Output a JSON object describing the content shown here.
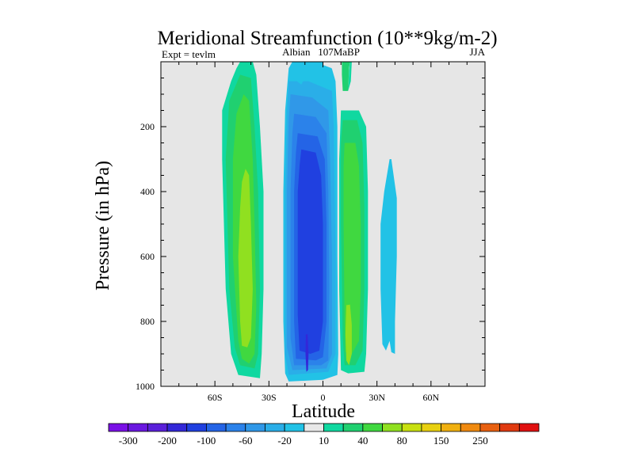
{
  "chart_data": {
    "type": "heatmap",
    "title": "Meridional Streamfunction (10**9kg/m-2)",
    "subtitle_left": "Expt = tevlm",
    "subtitle_center": "Albian   107MaBP",
    "subtitle_right": "JJA",
    "xlabel": "Latitude",
    "ylabel": "Pressure (in hPa)",
    "xlim": [
      -90,
      90
    ],
    "ylim": [
      1000,
      0
    ],
    "x_ticks": [
      {
        "value": -60,
        "label": "60S"
      },
      {
        "value": -30,
        "label": "30S"
      },
      {
        "value": 0,
        "label": "0"
      },
      {
        "value": 30,
        "label": "30N"
      },
      {
        "value": 60,
        "label": "60N"
      }
    ],
    "y_ticks": [
      {
        "value": 200,
        "label": "200"
      },
      {
        "value": 400,
        "label": "400"
      },
      {
        "value": 600,
        "label": "600"
      },
      {
        "value": 800,
        "label": "800"
      },
      {
        "value": 1000,
        "label": "1000"
      }
    ],
    "background_color": "#e6e6e6",
    "colorbar": {
      "colors": [
        "#7a10e6",
        "#6a18e0",
        "#5a20da",
        "#3328d8",
        "#2040e0",
        "#2464e6",
        "#2b82ea",
        "#3098e8",
        "#2aaee8",
        "#22c2e6",
        "#e8e8e8",
        "#10d8a0",
        "#20d070",
        "#40d840",
        "#90e020",
        "#c8e010",
        "#e8d010",
        "#f0b010",
        "#f08a10",
        "#e86010",
        "#e03a10",
        "#e01010"
      ],
      "labels": [
        {
          "index": 1,
          "text": "-300"
        },
        {
          "index": 3,
          "text": "-200"
        },
        {
          "index": 5,
          "text": "-100"
        },
        {
          "index": 7,
          "text": "-60"
        },
        {
          "index": 9,
          "text": "-20"
        },
        {
          "index": 11,
          "text": "10"
        },
        {
          "index": 13,
          "text": "40"
        },
        {
          "index": 15,
          "text": "80"
        },
        {
          "index": 17,
          "text": "150"
        },
        {
          "index": 19,
          "text": "250"
        }
      ]
    },
    "regions": [
      {
        "name": "nh-outer-cyan",
        "color": "#22c2e6",
        "points": [
          [
            -17,
            0
          ],
          [
            0,
            0
          ],
          [
            0,
            10
          ],
          [
            5,
            22
          ],
          [
            7,
            60
          ],
          [
            8,
            200
          ],
          [
            8,
            600
          ],
          [
            8.5,
            900
          ],
          [
            8,
            965
          ],
          [
            0,
            980
          ],
          [
            -19,
            985
          ],
          [
            -21,
            960
          ],
          [
            -22,
            800
          ],
          [
            -22,
            400
          ],
          [
            -21,
            150
          ],
          [
            -19,
            20
          ]
        ]
      },
      {
        "name": "nh-teal",
        "color": "#2aaee8",
        "points": [
          [
            -19,
            60
          ],
          [
            -8,
            60
          ],
          [
            5,
            90
          ],
          [
            6,
            200
          ],
          [
            7,
            600
          ],
          [
            7,
            900
          ],
          [
            3,
            955
          ],
          [
            -19,
            965
          ],
          [
            -21,
            900
          ],
          [
            -21,
            400
          ],
          [
            -20,
            150
          ]
        ]
      },
      {
        "name": "nh-mid-blue",
        "color": "#3098e8",
        "points": [
          [
            -18,
            100
          ],
          [
            -6,
            110
          ],
          [
            3,
            150
          ],
          [
            4,
            300
          ],
          [
            5,
            600
          ],
          [
            5,
            900
          ],
          [
            2,
            945
          ],
          [
            -17,
            950
          ],
          [
            -20,
            880
          ],
          [
            -20,
            400
          ],
          [
            -19,
            180
          ]
        ]
      },
      {
        "name": "nh-blue-2",
        "color": "#2b82ea",
        "points": [
          [
            -16,
            160
          ],
          [
            -4,
            170
          ],
          [
            2,
            220
          ],
          [
            3,
            400
          ],
          [
            3.5,
            700
          ],
          [
            3,
            920
          ],
          [
            -1,
            935
          ],
          [
            -16,
            935
          ],
          [
            -18,
            850
          ],
          [
            -18,
            400
          ],
          [
            -17,
            220
          ]
        ]
      },
      {
        "name": "nh-blue-3",
        "color": "#2464e6",
        "points": [
          [
            -14,
            220
          ],
          [
            -3,
            230
          ],
          [
            1,
            300
          ],
          [
            2,
            500
          ],
          [
            2,
            800
          ],
          [
            0,
            910
          ],
          [
            -4,
            920
          ],
          [
            -15,
            915
          ],
          [
            -16,
            800
          ],
          [
            -16,
            400
          ],
          [
            -15,
            280
          ]
        ]
      },
      {
        "name": "nh-blue-core",
        "color": "#2040e0",
        "points": [
          [
            -12,
            270
          ],
          [
            -4,
            280
          ],
          [
            -1,
            350
          ],
          [
            0,
            500
          ],
          [
            0,
            800
          ],
          [
            -2,
            890
          ],
          [
            -7,
            900
          ],
          [
            -13,
            890
          ],
          [
            -14,
            780
          ],
          [
            -14,
            400
          ],
          [
            -13,
            320
          ]
        ]
      },
      {
        "name": "nh-violet-core",
        "color": "#3328d8",
        "points": [
          [
            -9.5,
            840
          ],
          [
            -8.5,
            840
          ],
          [
            -8,
            900
          ],
          [
            -8.3,
            950
          ],
          [
            -9.2,
            955
          ],
          [
            -9.7,
            900
          ]
        ]
      },
      {
        "name": "sh-outer-green",
        "color": "#10d8a0",
        "points": [
          [
            -46,
            0
          ],
          [
            -39,
            0
          ],
          [
            -37,
            40
          ],
          [
            -35,
            200
          ],
          [
            -33,
            400
          ],
          [
            -33,
            700
          ],
          [
            -34,
            900
          ],
          [
            -35,
            975
          ],
          [
            -47,
            965
          ],
          [
            -51,
            900
          ],
          [
            -54,
            700
          ],
          [
            -56,
            300
          ],
          [
            -56,
            150
          ],
          [
            -51,
            60
          ],
          [
            -48,
            20
          ]
        ]
      },
      {
        "name": "sh-green-1",
        "color": "#20d070",
        "points": [
          [
            -46,
            40
          ],
          [
            -40,
            50
          ],
          [
            -38,
            200
          ],
          [
            -36,
            400
          ],
          [
            -35,
            700
          ],
          [
            -36,
            900
          ],
          [
            -38,
            945
          ],
          [
            -46,
            935
          ],
          [
            -49,
            880
          ],
          [
            -52,
            700
          ],
          [
            -54,
            300
          ],
          [
            -52,
            120
          ]
        ]
      },
      {
        "name": "sh-green-2",
        "color": "#40d840",
        "points": [
          [
            -44,
            100
          ],
          [
            -41,
            120
          ],
          [
            -39,
            300
          ],
          [
            -38,
            500
          ],
          [
            -37,
            750
          ],
          [
            -38,
            900
          ],
          [
            -41,
            930
          ],
          [
            -45,
            915
          ],
          [
            -47,
            860
          ],
          [
            -50,
            600
          ],
          [
            -50,
            300
          ],
          [
            -48,
            160
          ]
        ]
      },
      {
        "name": "sh-lime-core",
        "color": "#90e020",
        "points": [
          [
            -43,
            330
          ],
          [
            -41,
            350
          ],
          [
            -40,
            500
          ],
          [
            -39,
            700
          ],
          [
            -40,
            850
          ],
          [
            -42,
            880
          ],
          [
            -45,
            875
          ],
          [
            -46,
            800
          ],
          [
            -47,
            600
          ],
          [
            -46,
            450
          ],
          [
            -45,
            370
          ]
        ]
      },
      {
        "name": "eq-outer-green",
        "color": "#10d8a0",
        "points": [
          [
            10,
            150
          ],
          [
            20,
            150
          ],
          [
            24,
            200
          ],
          [
            25,
            400
          ],
          [
            25,
            700
          ],
          [
            24,
            900
          ],
          [
            23,
            955
          ],
          [
            14,
            960
          ],
          [
            10,
            950
          ],
          [
            9,
            700
          ],
          [
            9,
            300
          ]
        ]
      },
      {
        "name": "eq-green-1",
        "color": "#20d070",
        "points": [
          [
            11,
            180
          ],
          [
            19,
            180
          ],
          [
            22,
            250
          ],
          [
            23,
            450
          ],
          [
            23,
            700
          ],
          [
            22,
            890
          ],
          [
            18,
            935
          ],
          [
            12,
            935
          ],
          [
            11,
            850
          ],
          [
            10,
            500
          ],
          [
            10,
            250
          ]
        ]
      },
      {
        "name": "eq-green-2",
        "color": "#40d840",
        "points": [
          [
            12,
            250
          ],
          [
            18,
            250
          ],
          [
            20,
            320
          ],
          [
            21,
            500
          ],
          [
            21,
            700
          ],
          [
            20,
            860
          ],
          [
            16,
            900
          ],
          [
            12.5,
            895
          ],
          [
            12,
            800
          ],
          [
            11.5,
            500
          ],
          [
            11.5,
            320
          ]
        ]
      },
      {
        "name": "eq-lime-core",
        "color": "#90e020",
        "points": [
          [
            13,
            750
          ],
          [
            15,
            748
          ],
          [
            16,
            810
          ],
          [
            16,
            900
          ],
          [
            14.5,
            935
          ],
          [
            13,
            920
          ],
          [
            12.5,
            840
          ]
        ]
      },
      {
        "name": "nh-upper-green",
        "color": "#20d070",
        "points": [
          [
            10.5,
            0
          ],
          [
            15,
            0
          ],
          [
            14.5,
            20
          ],
          [
            14,
            90
          ],
          [
            11,
            90
          ],
          [
            10.5,
            40
          ]
        ]
      },
      {
        "name": "nh-upper-teal",
        "color": "#10d8a0",
        "points": [
          [
            15,
            0
          ],
          [
            16,
            0
          ],
          [
            15.5,
            60
          ],
          [
            14,
            90
          ],
          [
            14.5,
            30
          ]
        ]
      },
      {
        "name": "nh-sub-cyan",
        "color": "#22c2e6",
        "points": [
          [
            37,
            300
          ],
          [
            38,
            300
          ],
          [
            41,
            420
          ],
          [
            41,
            600
          ],
          [
            40,
            800
          ],
          [
            40,
            900
          ],
          [
            38,
            895
          ],
          [
            37,
            860
          ],
          [
            35,
            890
          ],
          [
            33,
            870
          ],
          [
            32,
            700
          ],
          [
            32,
            500
          ],
          [
            34,
            400
          ]
        ]
      },
      {
        "name": "eq-left-cyan",
        "color": "#22c2e6",
        "points": [
          [
            -17,
            0
          ],
          [
            -7,
            0
          ],
          [
            -8,
            30
          ],
          [
            -12,
            70
          ],
          [
            -17,
            50
          ]
        ]
      },
      {
        "name": "eq-tiny-cyan",
        "color": "#22c2e6",
        "points": [
          [
            0,
            10
          ],
          [
            5,
            20
          ],
          [
            3,
            30
          ],
          [
            0,
            25
          ]
        ]
      }
    ]
  }
}
